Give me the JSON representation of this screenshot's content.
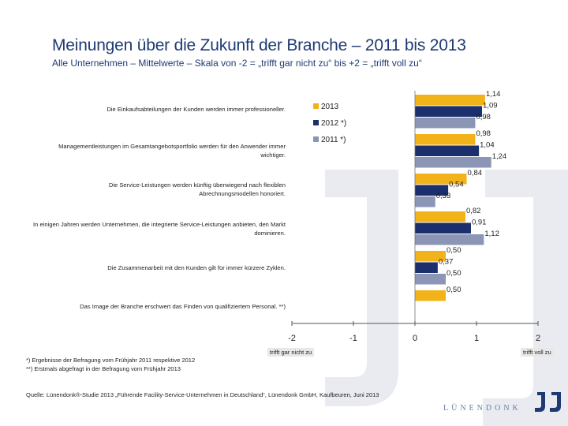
{
  "slide": {
    "title": "Meinungen über die Zukunft der Branche – 2011 bis 2013",
    "subtitle": "Alle Unternehmen – Mittelwerte – Skala von -2 = „trifft gar nicht zu“ bis +2 = „trifft voll zu“",
    "footnotes": [
      "*) Ergebnisse der Befragung vom Frühjahr 2011 respektive 2012",
      "**) Erstmals abgefragt in der Befragung vom Frühjahr 2013"
    ],
    "source": "Quelle: Lünendonk®-Studie 2013 „Führende Facility-Service-Unternehmen in Deutschland“, Lünendonk GmbH, Kaufbeuren, Juni 2013",
    "logo_text": "LÜNENDONK",
    "logo_icon": "lj-logo-icon",
    "background_mark": "lj-watermark-icon"
  },
  "chart_data": {
    "type": "bar",
    "orientation": "horizontal",
    "categories": [
      "Die Einkaufsabteilungen der Kunden werden immer professioneller.",
      "Managementleistungen im Gesamtangebotsportfolio werden für den Anwender immer wichtiger.",
      "Die Service-Leistungen werden künftig überwiegend nach flexiblen Abrechnungsmodellen honoriert.",
      "In einigen Jahren werden Unternehmen, die integrierte Service-Leistungen anbieten, den Markt dominieren.",
      "Die Zusammenarbeit mit den Kunden gilt für immer kürzere Zyklen.",
      "Das Image der Branche erschwert das Finden von qualifiziertem Personal. **)"
    ],
    "series": [
      {
        "name": "2013",
        "color": "#f2b21a",
        "values": [
          1.14,
          0.98,
          0.84,
          0.82,
          0.5,
          0.5
        ],
        "labels": [
          "1,14",
          "0,98",
          "0,84",
          "0,82",
          "0,50",
          "0,50"
        ]
      },
      {
        "name": "2012 *)",
        "color": "#1a2f6b",
        "values": [
          1.09,
          1.04,
          0.54,
          0.91,
          0.37,
          null
        ],
        "labels": [
          "1,09",
          "1,04",
          "0,54",
          "0,91",
          "0,37",
          ""
        ]
      },
      {
        "name": "2011 *)",
        "color": "#8b95b5",
        "values": [
          0.98,
          1.24,
          0.33,
          1.12,
          0.5,
          null
        ],
        "labels": [
          "0,98",
          "1,24",
          "0,33",
          "1,12",
          "0,50",
          ""
        ]
      }
    ],
    "xlim": [
      -2,
      2
    ],
    "ticks": [
      -2,
      -1,
      0,
      1,
      2
    ],
    "tick_labels": [
      "-2",
      "-1",
      "0",
      "1",
      "2"
    ],
    "axis_end_labels": {
      "left": "trifft gar nicht zu",
      "right": "trifft voll zu"
    },
    "legend": {
      "position": "top-center"
    },
    "grid": false
  }
}
